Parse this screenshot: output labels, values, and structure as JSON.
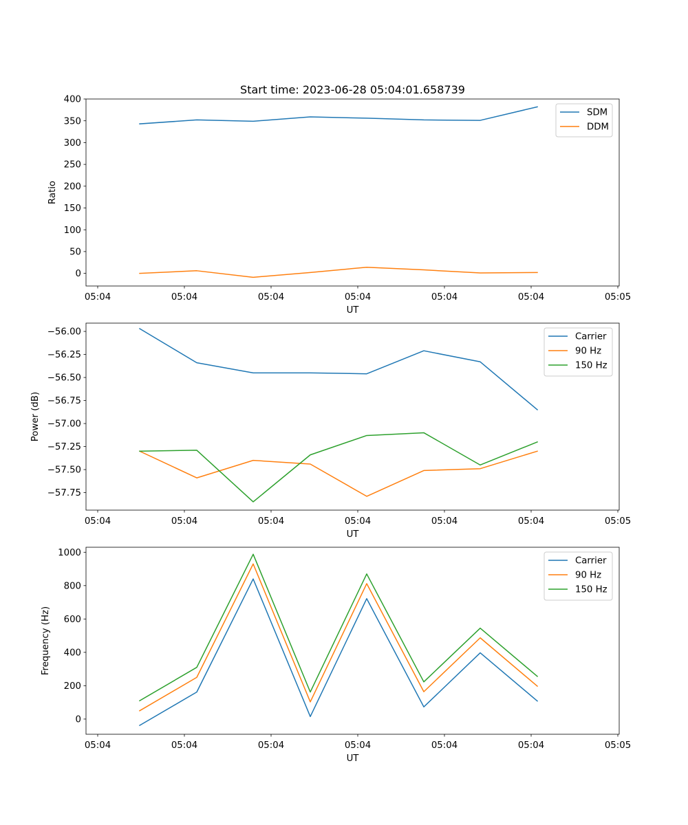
{
  "colors": {
    "blue": "#1f77b4",
    "orange": "#ff7f0e",
    "green": "#2ca02c"
  },
  "chart_data": [
    {
      "type": "line",
      "title": "Start time: 2023-06-28 05:04:01.658739",
      "xlabel": "UT",
      "ylabel": "Ratio",
      "xticks": [
        "05:04",
        "05:04",
        "05:04",
        "05:04",
        "05:04",
        "05:04",
        "05:05"
      ],
      "yticks": [
        "0",
        "50",
        "100",
        "150",
        "200",
        "250",
        "300",
        "350",
        "400"
      ],
      "ytick_values": [
        0,
        50,
        100,
        150,
        200,
        250,
        300,
        350,
        400
      ],
      "ylim": [
        -29,
        400
      ],
      "legend": "top-right",
      "series": [
        {
          "name": "SDM",
          "color": "#1f77b4",
          "values": [
            343,
            352,
            349,
            359,
            356,
            352,
            351,
            382
          ]
        },
        {
          "name": "DDM",
          "color": "#ff7f0e",
          "values": [
            0,
            6,
            -9,
            2,
            14,
            8,
            1,
            2
          ]
        }
      ]
    },
    {
      "type": "line",
      "title": "",
      "xlabel": "UT",
      "ylabel": "Power (dB)",
      "xticks": [
        "05:04",
        "05:04",
        "05:04",
        "05:04",
        "05:04",
        "05:04",
        "05:05"
      ],
      "yticks": [
        "−57.75",
        "−57.50",
        "−57.25",
        "−57.00",
        "−56.75",
        "−56.50",
        "−56.25",
        "−56.00"
      ],
      "ytick_values": [
        -57.75,
        -57.5,
        -57.25,
        -57.0,
        -56.75,
        -56.5,
        -56.25,
        -56.0
      ],
      "ylim": [
        -57.94,
        -55.91
      ],
      "legend": "top-right",
      "series": [
        {
          "name": "Carrier",
          "color": "#1f77b4",
          "values": [
            -55.97,
            -56.34,
            -56.45,
            -56.45,
            -56.46,
            -56.21,
            -56.33,
            -56.85
          ]
        },
        {
          "name": "90 Hz",
          "color": "#ff7f0e",
          "values": [
            -57.3,
            -57.59,
            -57.4,
            -57.44,
            -57.79,
            -57.51,
            -57.49,
            -57.3
          ]
        },
        {
          "name": "150 Hz",
          "color": "#2ca02c",
          "values": [
            -57.3,
            -57.29,
            -57.85,
            -57.34,
            -57.13,
            -57.1,
            -57.45,
            -57.2
          ]
        }
      ]
    },
    {
      "type": "line",
      "title": "",
      "xlabel": "UT",
      "ylabel": "Frequency (Hz)",
      "xticks": [
        "05:04",
        "05:04",
        "05:04",
        "05:04",
        "05:04",
        "05:04",
        "05:05"
      ],
      "yticks": [
        "0",
        "200",
        "400",
        "600",
        "800",
        "1000"
      ],
      "ytick_values": [
        0,
        200,
        400,
        600,
        800,
        1000
      ],
      "ylim": [
        -91,
        1030
      ],
      "legend": "top-right",
      "series": [
        {
          "name": "Carrier",
          "color": "#1f77b4",
          "values": [
            -38,
            162,
            840,
            15,
            722,
            73,
            397,
            108
          ]
        },
        {
          "name": "90 Hz",
          "color": "#ff7f0e",
          "values": [
            50,
            250,
            930,
            103,
            812,
            164,
            487,
            197
          ]
        },
        {
          "name": "150 Hz",
          "color": "#2ca02c",
          "values": [
            110,
            310,
            988,
            162,
            870,
            223,
            545,
            256
          ]
        }
      ]
    }
  ]
}
